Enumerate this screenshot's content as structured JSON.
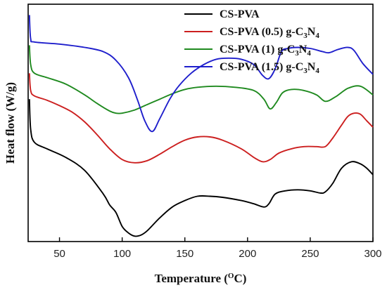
{
  "chart_data": {
    "type": "line",
    "title": "",
    "xlabel": {
      "base": "Temperature (",
      "sup": "O",
      "tail": "C)"
    },
    "ylabel": "Heat flow (W/g)",
    "xlim": [
      25,
      300
    ],
    "x_ticks": [
      50,
      100,
      150,
      200,
      250,
      300
    ],
    "y_ticks_shown": false,
    "grid": false,
    "legend_position": "top-right",
    "series": [
      {
        "name": "CS-PVA",
        "legend": {
          "base": "CS-PVA",
          "g": "",
          "sub3": "",
          "n": "",
          "sub4": ""
        },
        "color": "#000000",
        "points": [
          [
            26,
            0.56
          ],
          [
            27,
            0.42
          ],
          [
            30,
            0.36
          ],
          [
            40,
            0.33
          ],
          [
            55,
            0.29
          ],
          [
            70,
            0.23
          ],
          [
            85,
            0.12
          ],
          [
            90,
            0.07
          ],
          [
            95,
            0.035
          ],
          [
            100,
            -0.03
          ],
          [
            105,
            -0.06
          ],
          [
            110,
            -0.075
          ],
          [
            115,
            -0.07
          ],
          [
            120,
            -0.05
          ],
          [
            130,
            0.01
          ],
          [
            140,
            0.06
          ],
          [
            150,
            0.09
          ],
          [
            160,
            0.11
          ],
          [
            170,
            0.11
          ],
          [
            180,
            0.105
          ],
          [
            195,
            0.09
          ],
          [
            205,
            0.075
          ],
          [
            213,
            0.06
          ],
          [
            217,
            0.075
          ],
          [
            222,
            0.12
          ],
          [
            230,
            0.135
          ],
          [
            240,
            0.14
          ],
          [
            250,
            0.135
          ],
          [
            258,
            0.125
          ],
          [
            262,
            0.13
          ],
          [
            268,
            0.17
          ],
          [
            275,
            0.24
          ],
          [
            283,
            0.27
          ],
          [
            290,
            0.26
          ],
          [
            295,
            0.24
          ],
          [
            300,
            0.21
          ]
        ]
      },
      {
        "name": "CS-PVA (0.5) g-C3N4",
        "legend": {
          "base": "CS-PVA (0.5) ",
          "g": "g-C",
          "sub3": "3",
          "n": "N",
          "sub4": "4"
        },
        "color": "#cc1f1f",
        "points": [
          [
            26,
            0.68
          ],
          [
            27,
            0.6
          ],
          [
            30,
            0.575
          ],
          [
            40,
            0.555
          ],
          [
            50,
            0.53
          ],
          [
            60,
            0.5
          ],
          [
            70,
            0.455
          ],
          [
            80,
            0.395
          ],
          [
            90,
            0.33
          ],
          [
            100,
            0.28
          ],
          [
            110,
            0.265
          ],
          [
            120,
            0.275
          ],
          [
            130,
            0.305
          ],
          [
            140,
            0.34
          ],
          [
            150,
            0.37
          ],
          [
            160,
            0.385
          ],
          [
            170,
            0.385
          ],
          [
            180,
            0.37
          ],
          [
            195,
            0.33
          ],
          [
            205,
            0.29
          ],
          [
            212,
            0.27
          ],
          [
            218,
            0.28
          ],
          [
            225,
            0.31
          ],
          [
            235,
            0.33
          ],
          [
            245,
            0.34
          ],
          [
            255,
            0.34
          ],
          [
            262,
            0.34
          ],
          [
            268,
            0.38
          ],
          [
            275,
            0.44
          ],
          [
            280,
            0.48
          ],
          [
            285,
            0.495
          ],
          [
            290,
            0.49
          ],
          [
            295,
            0.46
          ],
          [
            300,
            0.43
          ]
        ]
      },
      {
        "name": "CS-PVA (1) g-C3N4",
        "legend": {
          "base": "CS-PVA (1) ",
          "g": "g-C",
          "sub3": "3",
          "n": "N",
          "sub4": "4"
        },
        "color": "#1f8a1f",
        "points": [
          [
            26,
            0.81
          ],
          [
            27,
            0.72
          ],
          [
            30,
            0.68
          ],
          [
            40,
            0.66
          ],
          [
            55,
            0.63
          ],
          [
            70,
            0.58
          ],
          [
            80,
            0.54
          ],
          [
            90,
            0.505
          ],
          [
            95,
            0.495
          ],
          [
            100,
            0.495
          ],
          [
            110,
            0.51
          ],
          [
            120,
            0.535
          ],
          [
            130,
            0.56
          ],
          [
            140,
            0.585
          ],
          [
            150,
            0.605
          ],
          [
            160,
            0.615
          ],
          [
            175,
            0.62
          ],
          [
            190,
            0.615
          ],
          [
            205,
            0.6
          ],
          [
            213,
            0.56
          ],
          [
            218,
            0.515
          ],
          [
            223,
            0.545
          ],
          [
            228,
            0.59
          ],
          [
            235,
            0.605
          ],
          [
            245,
            0.6
          ],
          [
            255,
            0.58
          ],
          [
            262,
            0.55
          ],
          [
            270,
            0.57
          ],
          [
            280,
            0.61
          ],
          [
            290,
            0.62
          ],
          [
            300,
            0.58
          ]
        ]
      },
      {
        "name": "CS-PVA (1.5) g-C3N4",
        "legend": {
          "base": "CS-PVA (1.5) ",
          "g": "g-C",
          "sub3": "3",
          "n": "N",
          "sub4": "4"
        },
        "color": "#1f1fcc",
        "points": [
          [
            26,
            0.95
          ],
          [
            27,
            0.84
          ],
          [
            30,
            0.825
          ],
          [
            50,
            0.815
          ],
          [
            70,
            0.8
          ],
          [
            85,
            0.78
          ],
          [
            95,
            0.74
          ],
          [
            105,
            0.66
          ],
          [
            112,
            0.56
          ],
          [
            118,
            0.46
          ],
          [
            124,
            0.41
          ],
          [
            130,
            0.47
          ],
          [
            138,
            0.56
          ],
          [
            145,
            0.62
          ],
          [
            155,
            0.68
          ],
          [
            165,
            0.72
          ],
          [
            175,
            0.745
          ],
          [
            185,
            0.75
          ],
          [
            195,
            0.745
          ],
          [
            205,
            0.72
          ],
          [
            212,
            0.67
          ],
          [
            217,
            0.655
          ],
          [
            222,
            0.7
          ],
          [
            227,
            0.78
          ],
          [
            232,
            0.795
          ],
          [
            240,
            0.8
          ],
          [
            250,
            0.795
          ],
          [
            260,
            0.78
          ],
          [
            265,
            0.775
          ],
          [
            272,
            0.79
          ],
          [
            280,
            0.8
          ],
          [
            285,
            0.785
          ],
          [
            292,
            0.725
          ],
          [
            300,
            0.675
          ]
        ]
      }
    ]
  }
}
